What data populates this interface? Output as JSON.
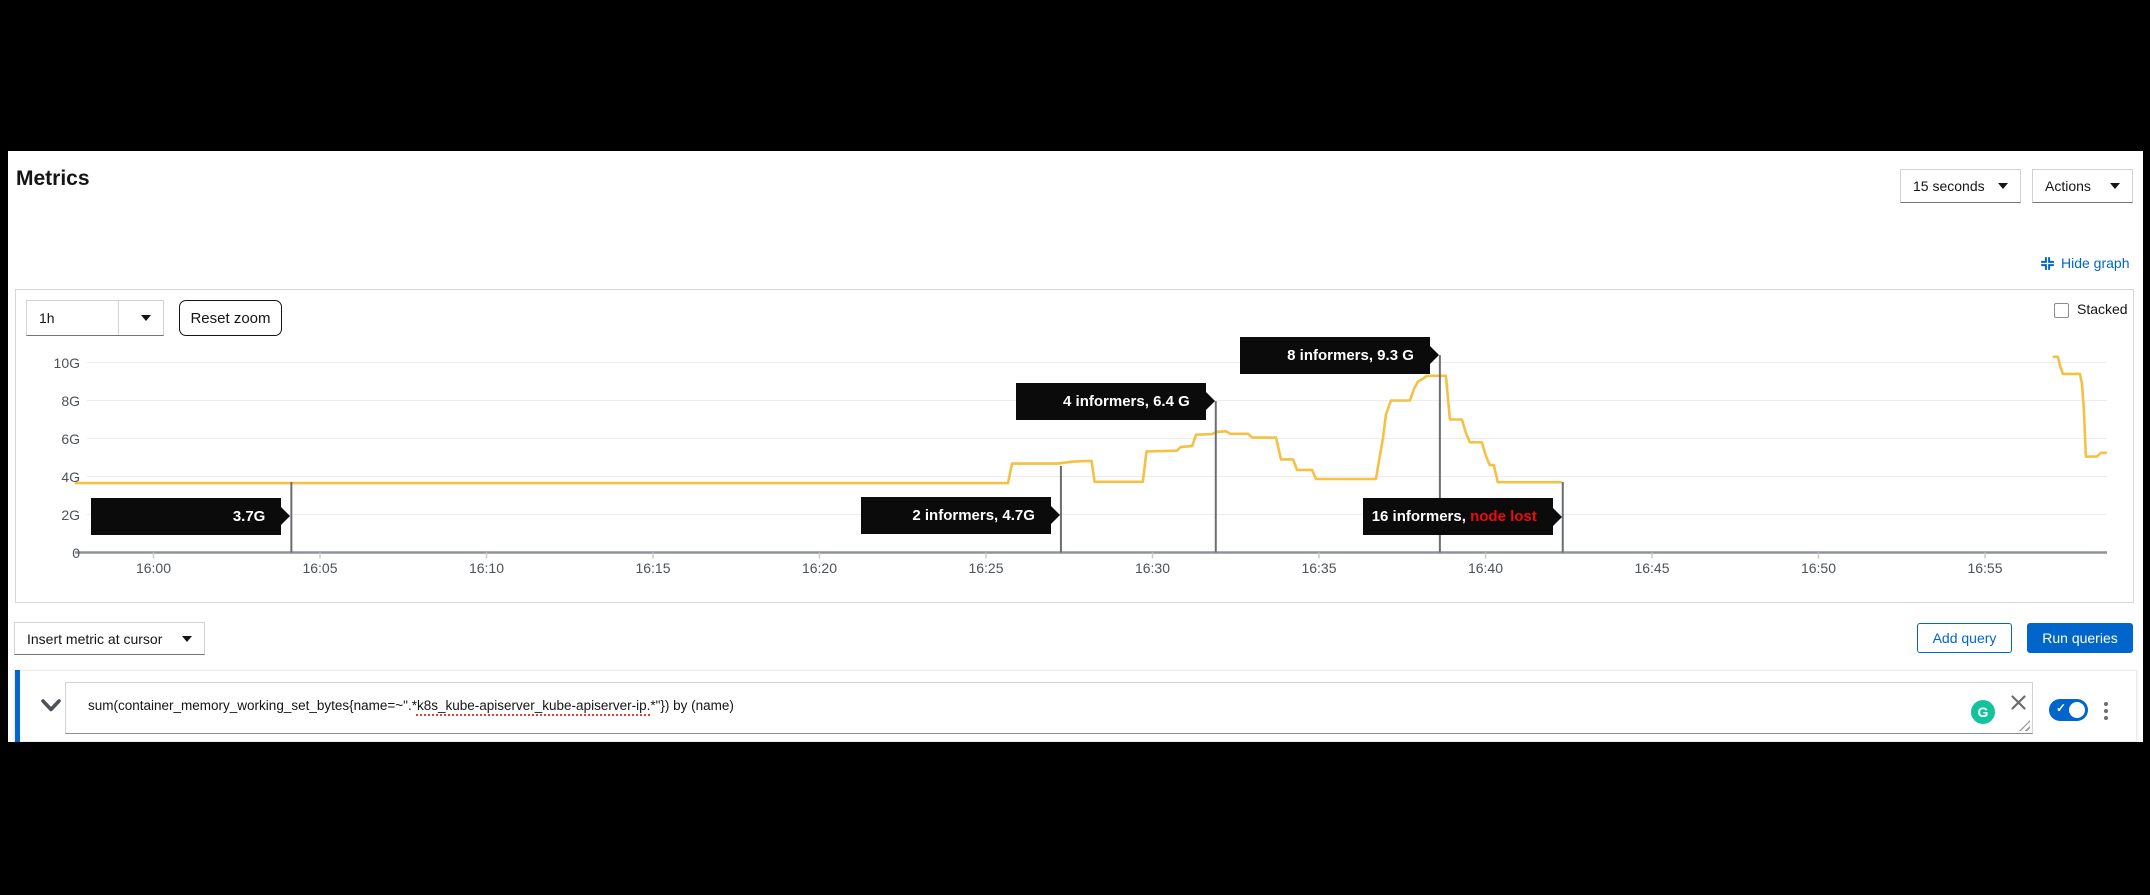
{
  "header": {
    "title": "Metrics",
    "interval_value": "15 seconds",
    "actions_value": "Actions",
    "hide_graph_label": "Hide graph"
  },
  "toolbar": {
    "duration_value": "1h",
    "reset_zoom_label": "Reset zoom",
    "stacked_label": "Stacked",
    "stacked_checked": false
  },
  "chart_data": {
    "type": "line",
    "title": "",
    "xlabel": "",
    "ylabel": "",
    "x_unit": "minutes after 16:00",
    "ylim": [
      0,
      10.5
    ],
    "grid": true,
    "x_ticks": [
      "16:00",
      "16:05",
      "16:10",
      "16:15",
      "16:20",
      "16:25",
      "16:30",
      "16:35",
      "16:40",
      "16:45",
      "16:50",
      "16:55"
    ],
    "y_ticks": [
      {
        "value": 0,
        "label": "0"
      },
      {
        "value": 2,
        "label": "2G"
      },
      {
        "value": 4,
        "label": "4G"
      },
      {
        "value": 6,
        "label": "6G"
      },
      {
        "value": 8,
        "label": "8G"
      },
      {
        "value": 10,
        "label": "10G"
      }
    ],
    "series": [
      {
        "name": "sum(container_memory_working_set_bytes) by (name)",
        "color": "#F4C145",
        "segments": [
          [
            [
              -2.36,
              3.65
            ],
            [
              25.66,
              3.65
            ],
            [
              25.78,
              4.68
            ],
            [
              27.16,
              4.68
            ],
            [
              27.58,
              4.78
            ],
            [
              28.06,
              4.82
            ],
            [
              28.17,
              4.82
            ],
            [
              28.26,
              3.72
            ],
            [
              29.71,
              3.72
            ],
            [
              29.82,
              5.32
            ],
            [
              30.73,
              5.36
            ],
            [
              30.85,
              5.56
            ],
            [
              31.19,
              5.6
            ],
            [
              31.31,
              6.2
            ],
            [
              31.79,
              6.23
            ],
            [
              31.91,
              6.35
            ],
            [
              32.21,
              6.38
            ],
            [
              32.33,
              6.25
            ],
            [
              32.87,
              6.25
            ],
            [
              32.99,
              6.05
            ],
            [
              33.71,
              6.05
            ],
            [
              33.86,
              4.9
            ],
            [
              34.22,
              4.9
            ],
            [
              34.34,
              4.35
            ],
            [
              34.79,
              4.35
            ],
            [
              34.91,
              3.87
            ],
            [
              36.71,
              3.87
            ],
            [
              36.83,
              5.1
            ],
            [
              36.92,
              6.0
            ],
            [
              37.01,
              7.25
            ],
            [
              37.16,
              8.0
            ],
            [
              37.73,
              8.0
            ],
            [
              37.85,
              8.6
            ],
            [
              37.97,
              9.0
            ],
            [
              38.12,
              9.15
            ],
            [
              38.24,
              9.3
            ],
            [
              38.81,
              9.3
            ],
            [
              38.93,
              7.0
            ],
            [
              39.29,
              7.0
            ],
            [
              39.41,
              6.3
            ],
            [
              39.53,
              5.8
            ],
            [
              39.89,
              5.8
            ],
            [
              40.01,
              5.1
            ],
            [
              40.13,
              4.6
            ],
            [
              40.25,
              4.6
            ],
            [
              40.37,
              3.7
            ],
            [
              42.29,
              3.7
            ]
          ],
          [
            [
              57.04,
              10.3
            ],
            [
              57.19,
              10.3
            ],
            [
              57.25,
              9.85
            ],
            [
              57.34,
              9.4
            ],
            [
              57.85,
              9.4
            ],
            [
              57.91,
              8.9
            ],
            [
              57.97,
              7.5
            ],
            [
              58.03,
              5.05
            ],
            [
              58.36,
              5.05
            ],
            [
              58.48,
              5.25
            ],
            [
              58.66,
              5.25
            ]
          ]
        ]
      }
    ],
    "annotations": [
      {
        "label": "3.7G",
        "label_red": "",
        "t_min": 4.14,
        "arrow_value": 1.92,
        "line_top_value": 3.71
      },
      {
        "label": "2 informers, 4.7G",
        "label_red": "",
        "t_min": 27.25,
        "arrow_value": 1.97,
        "line_top_value": 4.55
      },
      {
        "label": "4 informers, 6.4 G",
        "label_red": "",
        "t_min": 31.9,
        "arrow_value": 7.97,
        "line_top_value": 7.97
      },
      {
        "label": "8 informers, 9.3 G",
        "label_red": "",
        "t_min": 38.63,
        "arrow_value": 10.39,
        "line_top_value": 10.39
      },
      {
        "label": "16 informers, ",
        "label_red": "node lost",
        "t_min": 42.32,
        "arrow_value": 1.87,
        "line_top_value": 3.71
      }
    ]
  },
  "query_toolbar": {
    "insert_metric_label": "Insert metric at cursor",
    "add_query_label": "Add query",
    "run_queries_label": "Run queries"
  },
  "query_row": {
    "query_before": "sum(container_memory_working_set_bytes{name=~\".*",
    "query_misspelled": "k8s_kube-apiserver_kube-apiserver-ip.",
    "query_after": "*\"}) by (name)",
    "query_full": "sum(container_memory_working_set_bytes{name=~\".*k8s_kube-apiserver_kube-apiserver-ip.*\"}) by (name)",
    "grammarly_letter": "G",
    "toggle_enabled": true
  },
  "colors": {
    "accent_blue": "#0066CC",
    "line_gold": "#F4C145",
    "annotation_red": "#ee0b0b",
    "grammarly_green": "#15C39A",
    "axis_text": "#4d5258"
  }
}
